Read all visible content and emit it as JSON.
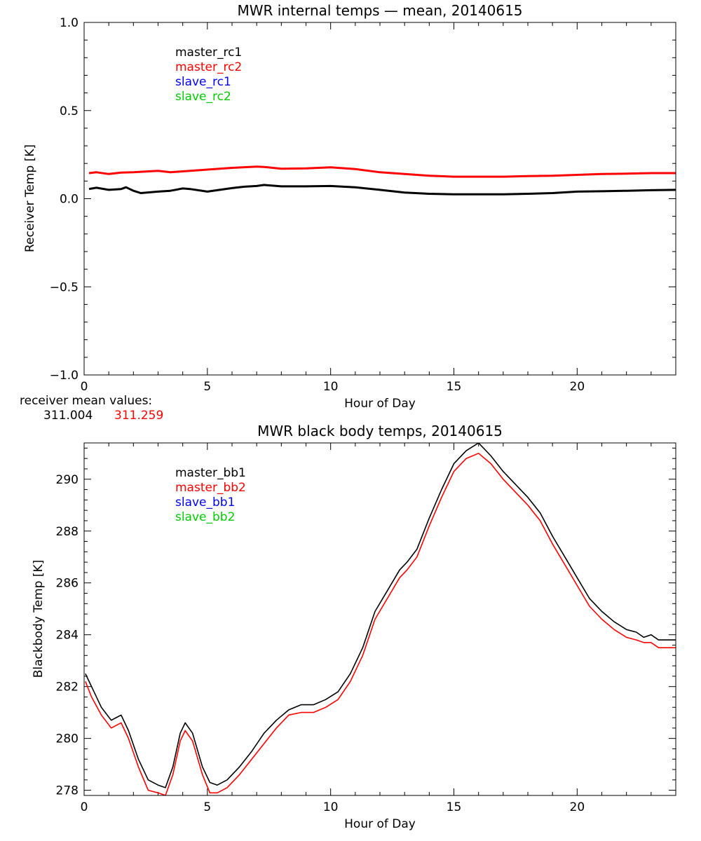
{
  "chart_data": [
    {
      "type": "line",
      "title": "MWR internal temps — mean, 20140615",
      "xlabel": "Hour of Day",
      "ylabel": "Receiver Temp [K]",
      "xlim": [
        0,
        24
      ],
      "ylim": [
        -1.0,
        1.0
      ],
      "xticks": [
        0,
        5,
        10,
        15,
        20
      ],
      "xtick_labels": [
        "0",
        "5",
        "10",
        "15",
        "20"
      ],
      "yticks": [
        -1.0,
        -0.5,
        0.0,
        0.5,
        1.0
      ],
      "ytick_labels": [
        "−1.0",
        "−0.5",
        "0.0",
        "0.5",
        "1.0"
      ],
      "legend_position": "top-left",
      "legend": [
        {
          "label": "master_rc1",
          "color": "#000000"
        },
        {
          "label": "master_rc2",
          "color": "#ff0000"
        },
        {
          "label": "slave_rc1",
          "color": "#0000ff"
        },
        {
          "label": "slave_rc2",
          "color": "#00cc00"
        }
      ],
      "series": [
        {
          "name": "master_rc1",
          "color": "#000000",
          "x": [
            0.2,
            0.5,
            1.0,
            1.5,
            1.7,
            2.0,
            2.3,
            3.0,
            3.5,
            4.0,
            4.3,
            5.0,
            5.5,
            6.0,
            6.5,
            7.0,
            7.3,
            8.0,
            9.0,
            10.0,
            11.0,
            12.0,
            13.0,
            14.0,
            15.0,
            16.0,
            17.0,
            18.0,
            19.0,
            20.0,
            21.0,
            22.0,
            23.0,
            24.0
          ],
          "values": [
            0.055,
            0.062,
            0.05,
            0.055,
            0.065,
            0.045,
            0.032,
            0.04,
            0.045,
            0.058,
            0.055,
            0.04,
            0.05,
            0.06,
            0.068,
            0.072,
            0.078,
            0.07,
            0.07,
            0.072,
            0.065,
            0.05,
            0.035,
            0.028,
            0.025,
            0.025,
            0.025,
            0.028,
            0.032,
            0.04,
            0.042,
            0.045,
            0.048,
            0.05
          ]
        },
        {
          "name": "master_rc2",
          "color": "#ff0000",
          "x": [
            0.2,
            0.5,
            1.0,
            1.5,
            2.0,
            3.0,
            3.5,
            4.0,
            5.0,
            6.0,
            7.0,
            7.3,
            8.0,
            9.0,
            10.0,
            11.0,
            12.0,
            13.0,
            14.0,
            15.0,
            16.0,
            17.0,
            18.0,
            19.0,
            20.0,
            21.0,
            22.0,
            23.0,
            24.0
          ],
          "values": [
            0.145,
            0.15,
            0.14,
            0.148,
            0.15,
            0.158,
            0.15,
            0.155,
            0.165,
            0.175,
            0.182,
            0.18,
            0.17,
            0.172,
            0.178,
            0.168,
            0.15,
            0.14,
            0.13,
            0.125,
            0.125,
            0.125,
            0.128,
            0.13,
            0.135,
            0.14,
            0.142,
            0.145,
            0.145
          ]
        }
      ]
    },
    {
      "type": "line",
      "title": "MWR black body temps, 20140615",
      "xlabel": "Hour of Day",
      "ylabel": "Blackbody Temp [K]",
      "xlim": [
        0,
        24
      ],
      "ylim": [
        277.8,
        291.4
      ],
      "xticks": [
        0,
        5,
        10,
        15,
        20
      ],
      "xtick_labels": [
        "0",
        "5",
        "10",
        "15",
        "20"
      ],
      "yticks": [
        278,
        280,
        282,
        284,
        286,
        288,
        290
      ],
      "ytick_labels": [
        "278",
        "280",
        "282",
        "284",
        "286",
        "288",
        "290"
      ],
      "legend_position": "top-left",
      "legend": [
        {
          "label": "master_bb1",
          "color": "#000000"
        },
        {
          "label": "master_bb2",
          "color": "#ff0000"
        },
        {
          "label": "slave_bb1",
          "color": "#0000ff"
        },
        {
          "label": "slave_bb2",
          "color": "#00cc00"
        }
      ],
      "series": [
        {
          "name": "master_bb1",
          "color": "#000000",
          "x": [
            0.05,
            0.3,
            0.7,
            1.1,
            1.3,
            1.5,
            1.8,
            2.2,
            2.6,
            3.0,
            3.3,
            3.6,
            3.9,
            4.1,
            4.4,
            4.8,
            5.1,
            5.4,
            5.8,
            6.3,
            6.8,
            7.3,
            7.8,
            8.3,
            8.8,
            9.3,
            9.8,
            10.3,
            10.8,
            11.3,
            11.8,
            12.3,
            12.8,
            13.1,
            13.5,
            14.0,
            14.5,
            15.0,
            15.5,
            16.0,
            16.5,
            17.0,
            17.5,
            18.0,
            18.5,
            19.0,
            19.5,
            20.0,
            20.5,
            21.0,
            21.5,
            22.0,
            22.4,
            22.7,
            23.0,
            23.3,
            23.6,
            24.0
          ],
          "values": [
            282.5,
            282.0,
            281.2,
            280.7,
            280.8,
            280.9,
            280.3,
            279.2,
            278.4,
            278.2,
            278.1,
            278.9,
            280.2,
            280.6,
            280.2,
            278.9,
            278.3,
            278.2,
            278.4,
            278.9,
            279.5,
            280.2,
            280.7,
            281.1,
            281.3,
            281.3,
            281.5,
            281.8,
            282.5,
            283.5,
            284.9,
            285.7,
            286.5,
            286.8,
            287.3,
            288.5,
            289.6,
            290.6,
            291.1,
            291.4,
            290.9,
            290.3,
            289.8,
            289.3,
            288.7,
            287.8,
            287.0,
            286.2,
            285.4,
            284.9,
            284.5,
            284.2,
            284.1,
            283.9,
            284.0,
            283.8,
            283.8,
            283.8
          ]
        },
        {
          "name": "master_bb2",
          "color": "#ff0000",
          "x": [
            0.05,
            0.3,
            0.7,
            1.1,
            1.3,
            1.5,
            1.8,
            2.2,
            2.6,
            3.0,
            3.3,
            3.6,
            3.9,
            4.1,
            4.4,
            4.8,
            5.1,
            5.4,
            5.8,
            6.3,
            6.8,
            7.3,
            7.8,
            8.3,
            8.8,
            9.3,
            9.8,
            10.3,
            10.8,
            11.3,
            11.8,
            12.3,
            12.8,
            13.1,
            13.5,
            14.0,
            14.5,
            15.0,
            15.5,
            16.0,
            16.5,
            17.0,
            17.5,
            18.0,
            18.5,
            19.0,
            19.5,
            20.0,
            20.5,
            21.0,
            21.5,
            22.0,
            22.4,
            22.7,
            23.0,
            23.3,
            23.6,
            24.0
          ],
          "values": [
            282.2,
            281.6,
            280.9,
            280.4,
            280.5,
            280.6,
            280.0,
            278.9,
            278.0,
            277.9,
            277.8,
            278.6,
            279.9,
            280.3,
            279.9,
            278.6,
            277.9,
            277.9,
            278.1,
            278.6,
            279.2,
            279.8,
            280.4,
            280.9,
            281.0,
            281.0,
            281.2,
            281.5,
            282.2,
            283.2,
            284.6,
            285.4,
            286.2,
            286.5,
            287.0,
            288.2,
            289.3,
            290.3,
            290.8,
            291.0,
            290.6,
            290.0,
            289.5,
            289.0,
            288.4,
            287.5,
            286.7,
            285.9,
            285.1,
            284.6,
            284.2,
            283.9,
            283.8,
            283.7,
            283.7,
            283.5,
            283.5,
            283.5
          ]
        }
      ],
      "annotations": [
        {
          "text": "receiver mean values:",
          "color": "#000000"
        },
        {
          "text": "311.004",
          "color": "#000000"
        },
        {
          "text": "311.259",
          "color": "#ff0000"
        }
      ]
    }
  ],
  "labels": {
    "mean_values_heading": "receiver mean values:",
    "mean_value_1": "311.004",
    "mean_value_2": "311.259"
  }
}
